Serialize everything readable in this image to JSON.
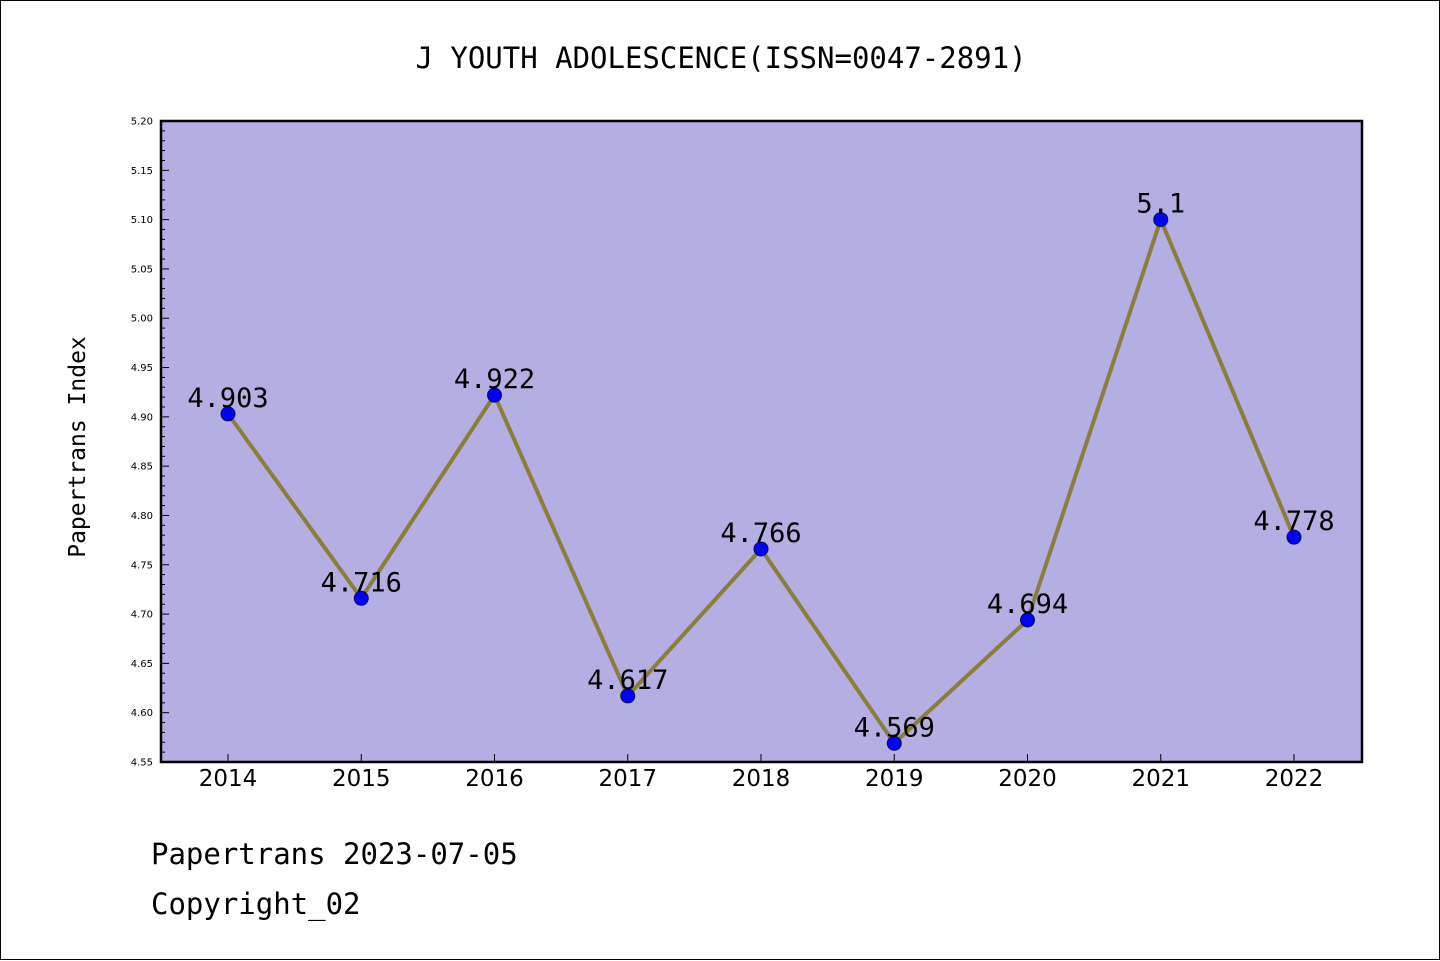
{
  "colors": {
    "plot_background": "#b5aee2",
    "line": "#8b7d3a",
    "marker": "#0000ff",
    "marker_edge": "#0a0a5a",
    "axes": "#000000"
  },
  "chart_data": {
    "type": "line",
    "title": "J YOUTH ADOLESCENCE(ISSN=0047-2891)",
    "xlabel": "",
    "ylabel": "Papertrans Index",
    "categories": [
      "2014",
      "2015",
      "2016",
      "2017",
      "2018",
      "2019",
      "2020",
      "2021",
      "2022"
    ],
    "values": [
      4.903,
      4.716,
      4.922,
      4.617,
      4.766,
      4.569,
      4.694,
      5.1,
      4.778
    ],
    "data_labels": [
      "4.903",
      "4.716",
      "4.922",
      "4.617",
      "4.766",
      "4.569",
      "4.694",
      "5.1",
      "4.778"
    ],
    "ylim": [
      4.55,
      5.2
    ],
    "yticks": [
      "4.55",
      "4.60",
      "4.65",
      "4.70",
      "4.75",
      "4.80",
      "4.85",
      "4.90",
      "4.95",
      "5.00",
      "5.05",
      "5.10",
      "5.15",
      "5.20"
    ],
    "grid": false,
    "legend": "none"
  },
  "footer": {
    "date_line": "Papertrans 2023-07-05",
    "copyright_line": "Copyright_02"
  }
}
